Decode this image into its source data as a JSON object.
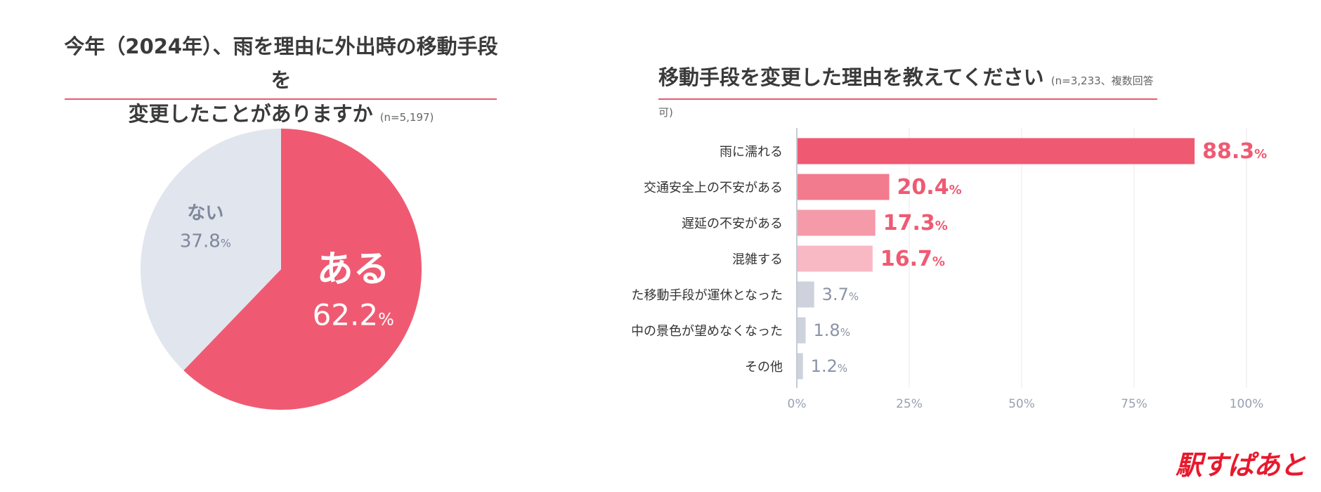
{
  "left": {
    "title_line1": "今年（2024年）、雨を理由に外出時の移動手段を",
    "title_line2": "変更したことがありますか",
    "sample": "(n=5,197)"
  },
  "right": {
    "title": "移動手段を変更した理由を教えてください",
    "sample": "(n=3,233、複数回答可)"
  },
  "logo": "駅すぱあと",
  "colors": {
    "accent": "#ef5a72",
    "pie_other": "#e1e5ee",
    "bar_grey": "#cdd2dc",
    "text_grey": "#8a93a6"
  },
  "chart_data": [
    {
      "type": "pie",
      "title": "今年（2024年）、雨を理由に外出時の移動手段を変更したことがありますか",
      "slices": [
        {
          "label": "ある",
          "value": 62.2,
          "display": "62.2",
          "color": "#ef5a72",
          "text_color": "#ffffff"
        },
        {
          "label": "ない",
          "value": 37.8,
          "display": "37.8",
          "color": "#e1e5ee",
          "text_color": "#7e889b"
        }
      ],
      "unit": "%"
    },
    {
      "type": "bar",
      "orientation": "horizontal",
      "title": "移動手段を変更した理由を教えてください",
      "categories": [
        "雨に濡れる",
        "交通安全上の不安がある",
        "遅延の不安がある",
        "混雑する",
        "予定していた移動手段が運休となった",
        "移動中の景色が望めなくなった",
        "その他"
      ],
      "values": [
        88.3,
        20.4,
        17.3,
        16.7,
        3.7,
        1.8,
        1.2
      ],
      "labels": [
        "88.3",
        "20.4",
        "17.3",
        "16.7",
        "3.7",
        "1.8",
        "1.2"
      ],
      "bar_colors": [
        "#ef5a72",
        "#f27b8d",
        "#f59aa8",
        "#f8b9c5",
        "#cdd2dc",
        "#cdd2dc",
        "#cdd2dc"
      ],
      "label_colors": [
        "#ef5a72",
        "#ef5a72",
        "#ef5a72",
        "#ef5a72",
        "#8a93a6",
        "#8a93a6",
        "#8a93a6"
      ],
      "xlim": [
        0,
        100
      ],
      "xticks": [
        "0%",
        "25%",
        "50%",
        "75%",
        "100%"
      ],
      "unit": "%",
      "grid": true
    }
  ]
}
